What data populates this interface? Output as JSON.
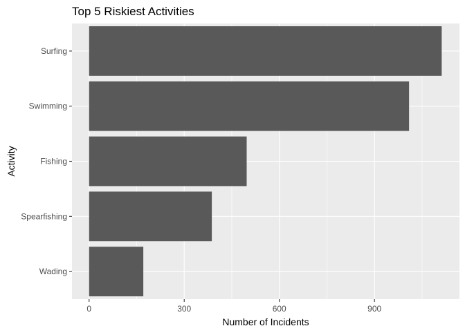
{
  "chart_data": {
    "type": "bar",
    "orientation": "horizontal",
    "title": "Top 5 Riskiest Activities",
    "xlabel": "Number of Incidents",
    "ylabel": "Activity",
    "categories": [
      "Surfing",
      "Swimming",
      "Fishing",
      "Spearfishing",
      "Wading"
    ],
    "values": [
      1112,
      1009,
      497,
      387,
      171
    ],
    "xlim": [
      -54,
      1168
    ],
    "xticks": [
      "0",
      "300",
      "600",
      "900"
    ],
    "grid": true,
    "legend": "none",
    "bar_color": "#595959",
    "panel_color": "#ebebeb",
    "grid_color": "#ffffff"
  }
}
